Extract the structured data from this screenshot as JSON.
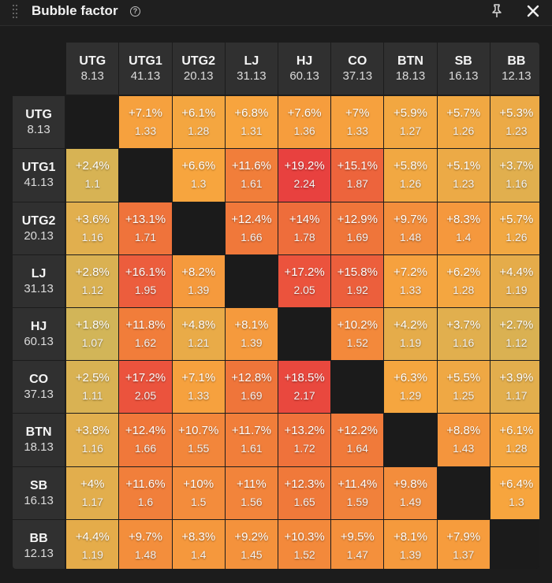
{
  "window": {
    "title": "Bubble factor",
    "icons": {
      "drag": "drag-handle-icon",
      "help": "help-icon",
      "pin": "pin-icon",
      "close": "close-icon"
    }
  },
  "positions": [
    {
      "name": "UTG",
      "stack": "8.13"
    },
    {
      "name": "UTG1",
      "stack": "41.13"
    },
    {
      "name": "UTG2",
      "stack": "20.13"
    },
    {
      "name": "LJ",
      "stack": "31.13"
    },
    {
      "name": "HJ",
      "stack": "60.13"
    },
    {
      "name": "CO",
      "stack": "37.13"
    },
    {
      "name": "BTN",
      "stack": "18.13"
    },
    {
      "name": "SB",
      "stack": "16.13"
    },
    {
      "name": "BB",
      "stack": "12.13"
    }
  ],
  "matrix": [
    [
      null,
      [
        "+7.1%",
        "1.33"
      ],
      [
        "+6.1%",
        "1.28"
      ],
      [
        "+6.8%",
        "1.31"
      ],
      [
        "+7.6%",
        "1.36"
      ],
      [
        "+7%",
        "1.33"
      ],
      [
        "+5.9%",
        "1.27"
      ],
      [
        "+5.7%",
        "1.26"
      ],
      [
        "+5.3%",
        "1.23"
      ]
    ],
    [
      [
        "+2.4%",
        "1.1"
      ],
      null,
      [
        "+6.6%",
        "1.3"
      ],
      [
        "+11.6%",
        "1.61"
      ],
      [
        "+19.2%",
        "2.24"
      ],
      [
        "+15.1%",
        "1.87"
      ],
      [
        "+5.8%",
        "1.26"
      ],
      [
        "+5.1%",
        "1.23"
      ],
      [
        "+3.7%",
        "1.16"
      ]
    ],
    [
      [
        "+3.6%",
        "1.16"
      ],
      [
        "+13.1%",
        "1.71"
      ],
      null,
      [
        "+12.4%",
        "1.66"
      ],
      [
        "+14%",
        "1.78"
      ],
      [
        "+12.9%",
        "1.69"
      ],
      [
        "+9.7%",
        "1.48"
      ],
      [
        "+8.3%",
        "1.4"
      ],
      [
        "+5.7%",
        "1.26"
      ]
    ],
    [
      [
        "+2.8%",
        "1.12"
      ],
      [
        "+16.1%",
        "1.95"
      ],
      [
        "+8.2%",
        "1.39"
      ],
      null,
      [
        "+17.2%",
        "2.05"
      ],
      [
        "+15.8%",
        "1.92"
      ],
      [
        "+7.2%",
        "1.33"
      ],
      [
        "+6.2%",
        "1.28"
      ],
      [
        "+4.4%",
        "1.19"
      ]
    ],
    [
      [
        "+1.8%",
        "1.07"
      ],
      [
        "+11.8%",
        "1.62"
      ],
      [
        "+4.8%",
        "1.21"
      ],
      [
        "+8.1%",
        "1.39"
      ],
      null,
      [
        "+10.2%",
        "1.52"
      ],
      [
        "+4.2%",
        "1.19"
      ],
      [
        "+3.7%",
        "1.16"
      ],
      [
        "+2.7%",
        "1.12"
      ]
    ],
    [
      [
        "+2.5%",
        "1.11"
      ],
      [
        "+17.2%",
        "2.05"
      ],
      [
        "+7.1%",
        "1.33"
      ],
      [
        "+12.8%",
        "1.69"
      ],
      [
        "+18.5%",
        "2.17"
      ],
      null,
      [
        "+6.3%",
        "1.29"
      ],
      [
        "+5.5%",
        "1.25"
      ],
      [
        "+3.9%",
        "1.17"
      ]
    ],
    [
      [
        "+3.8%",
        "1.16"
      ],
      [
        "+12.4%",
        "1.66"
      ],
      [
        "+10.7%",
        "1.55"
      ],
      [
        "+11.7%",
        "1.61"
      ],
      [
        "+13.2%",
        "1.72"
      ],
      [
        "+12.2%",
        "1.64"
      ],
      null,
      [
        "+8.8%",
        "1.43"
      ],
      [
        "+6.1%",
        "1.28"
      ]
    ],
    [
      [
        "+4%",
        "1.17"
      ],
      [
        "+11.6%",
        "1.6"
      ],
      [
        "+10%",
        "1.5"
      ],
      [
        "+11%",
        "1.56"
      ],
      [
        "+12.3%",
        "1.65"
      ],
      [
        "+11.4%",
        "1.59"
      ],
      [
        "+9.8%",
        "1.49"
      ],
      null,
      [
        "+6.4%",
        "1.3"
      ]
    ],
    [
      [
        "+4.4%",
        "1.19"
      ],
      [
        "+9.7%",
        "1.48"
      ],
      [
        "+8.3%",
        "1.4"
      ],
      [
        "+9.2%",
        "1.45"
      ],
      [
        "+10.3%",
        "1.52"
      ],
      [
        "+9.5%",
        "1.47"
      ],
      [
        "+8.1%",
        "1.39"
      ],
      [
        "+7.9%",
        "1.37"
      ],
      null
    ]
  ],
  "colors": {
    "background": "#1c1c1c",
    "header_cell": "#303030",
    "diagonal_cell": "#1b1b1b",
    "scale_low": "#cfb65a",
    "scale_mid_low": "#f7a53e",
    "scale_mid_high": "#f0793a",
    "scale_high": "#e8403f"
  }
}
